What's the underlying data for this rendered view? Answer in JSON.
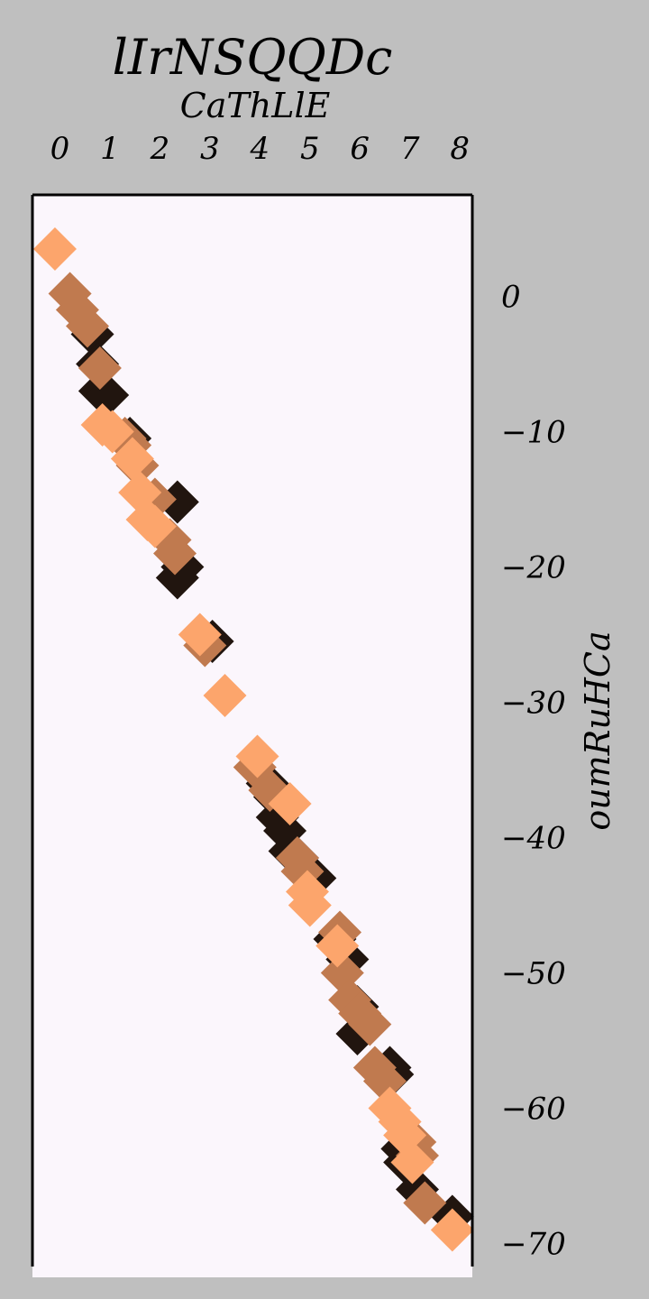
{
  "chart_data": {
    "type": "scatter",
    "title": "lIrNSQQDc",
    "xlabel": "CaThLlE",
    "ylabel": "oumRuHCa",
    "x_axis_position": "top",
    "y_axis_position": "right",
    "xlim": [
      -0.55,
      8.25
    ],
    "ylim": [
      -72.5,
      7.5
    ],
    "x_ticks": [
      "0",
      "1",
      "2",
      "3",
      "4",
      "5",
      "6",
      "7",
      "8"
    ],
    "y_ticks": [
      "0",
      "−10",
      "−20",
      "−30",
      "−40",
      "−50",
      "−60",
      "−70"
    ],
    "grid": false,
    "legend": "none",
    "colors": {
      "figure_background": "#bfbfbf",
      "plot_background": "#fbf6fc",
      "spine": "#000000"
    },
    "marker": "diamond",
    "series": [
      {
        "color": "#21150f",
        "points": [
          [
            0.65,
            -2.8
          ],
          [
            0.75,
            -5.0
          ],
          [
            0.8,
            -7.0
          ],
          [
            0.95,
            -7.3
          ],
          [
            1.4,
            -10.5
          ],
          [
            2.35,
            -15.2
          ],
          [
            2.45,
            -20.0
          ],
          [
            2.35,
            -20.8
          ],
          [
            3.05,
            -25.5
          ],
          [
            4.15,
            -36.0
          ],
          [
            4.3,
            -37.0
          ],
          [
            4.35,
            -38.5
          ],
          [
            4.5,
            -39.5
          ],
          [
            4.6,
            -41.0
          ],
          [
            4.75,
            -41.5
          ],
          [
            5.1,
            -43.0
          ],
          [
            5.5,
            -47.5
          ],
          [
            5.75,
            -49.0
          ],
          [
            5.95,
            -52.5
          ],
          [
            5.95,
            -54.5
          ],
          [
            6.6,
            -57.0
          ],
          [
            6.65,
            -57.5
          ],
          [
            6.85,
            -63.0
          ],
          [
            6.9,
            -64.0
          ],
          [
            7.15,
            -66.0
          ],
          [
            7.85,
            -68.0
          ]
        ]
      },
      {
        "color": "#c07a4f",
        "points": [
          [
            0.2,
            0.2
          ],
          [
            0.35,
            -1.0
          ],
          [
            0.55,
            -2.2
          ],
          [
            0.8,
            -5.3
          ],
          [
            1.3,
            -10.5
          ],
          [
            1.4,
            -11.0
          ],
          [
            1.55,
            -12.5
          ],
          [
            1.9,
            -15.0
          ],
          [
            2.2,
            -18.0
          ],
          [
            2.3,
            -19.0
          ],
          [
            2.9,
            -25.8
          ],
          [
            3.9,
            -34.8
          ],
          [
            4.2,
            -36.5
          ],
          [
            4.75,
            -41.5
          ],
          [
            4.85,
            -42.5
          ],
          [
            5.6,
            -47.0
          ],
          [
            5.65,
            -50.0
          ],
          [
            5.8,
            -52.0
          ],
          [
            6.0,
            -53.0
          ],
          [
            6.2,
            -53.8
          ],
          [
            6.3,
            -57.0
          ],
          [
            6.5,
            -58.0
          ],
          [
            7.1,
            -62.5
          ],
          [
            7.15,
            -63.5
          ],
          [
            7.3,
            -67.0
          ]
        ]
      },
      {
        "color": "#fca56c",
        "points": [
          [
            -0.1,
            3.5
          ],
          [
            0.85,
            -9.5
          ],
          [
            1.05,
            -10.0
          ],
          [
            1.45,
            -12.0
          ],
          [
            1.6,
            -14.5
          ],
          [
            1.75,
            -16.5
          ],
          [
            1.9,
            -17.0
          ],
          [
            2.8,
            -25.0
          ],
          [
            3.3,
            -29.5
          ],
          [
            3.95,
            -34.0
          ],
          [
            4.6,
            -37.5
          ],
          [
            4.95,
            -44.0
          ],
          [
            5.0,
            -45.0
          ],
          [
            5.55,
            -48.0
          ],
          [
            6.6,
            -60.0
          ],
          [
            6.8,
            -61.0
          ],
          [
            6.9,
            -62.0
          ],
          [
            7.05,
            -64.0
          ],
          [
            7.85,
            -69.0
          ]
        ]
      }
    ]
  }
}
